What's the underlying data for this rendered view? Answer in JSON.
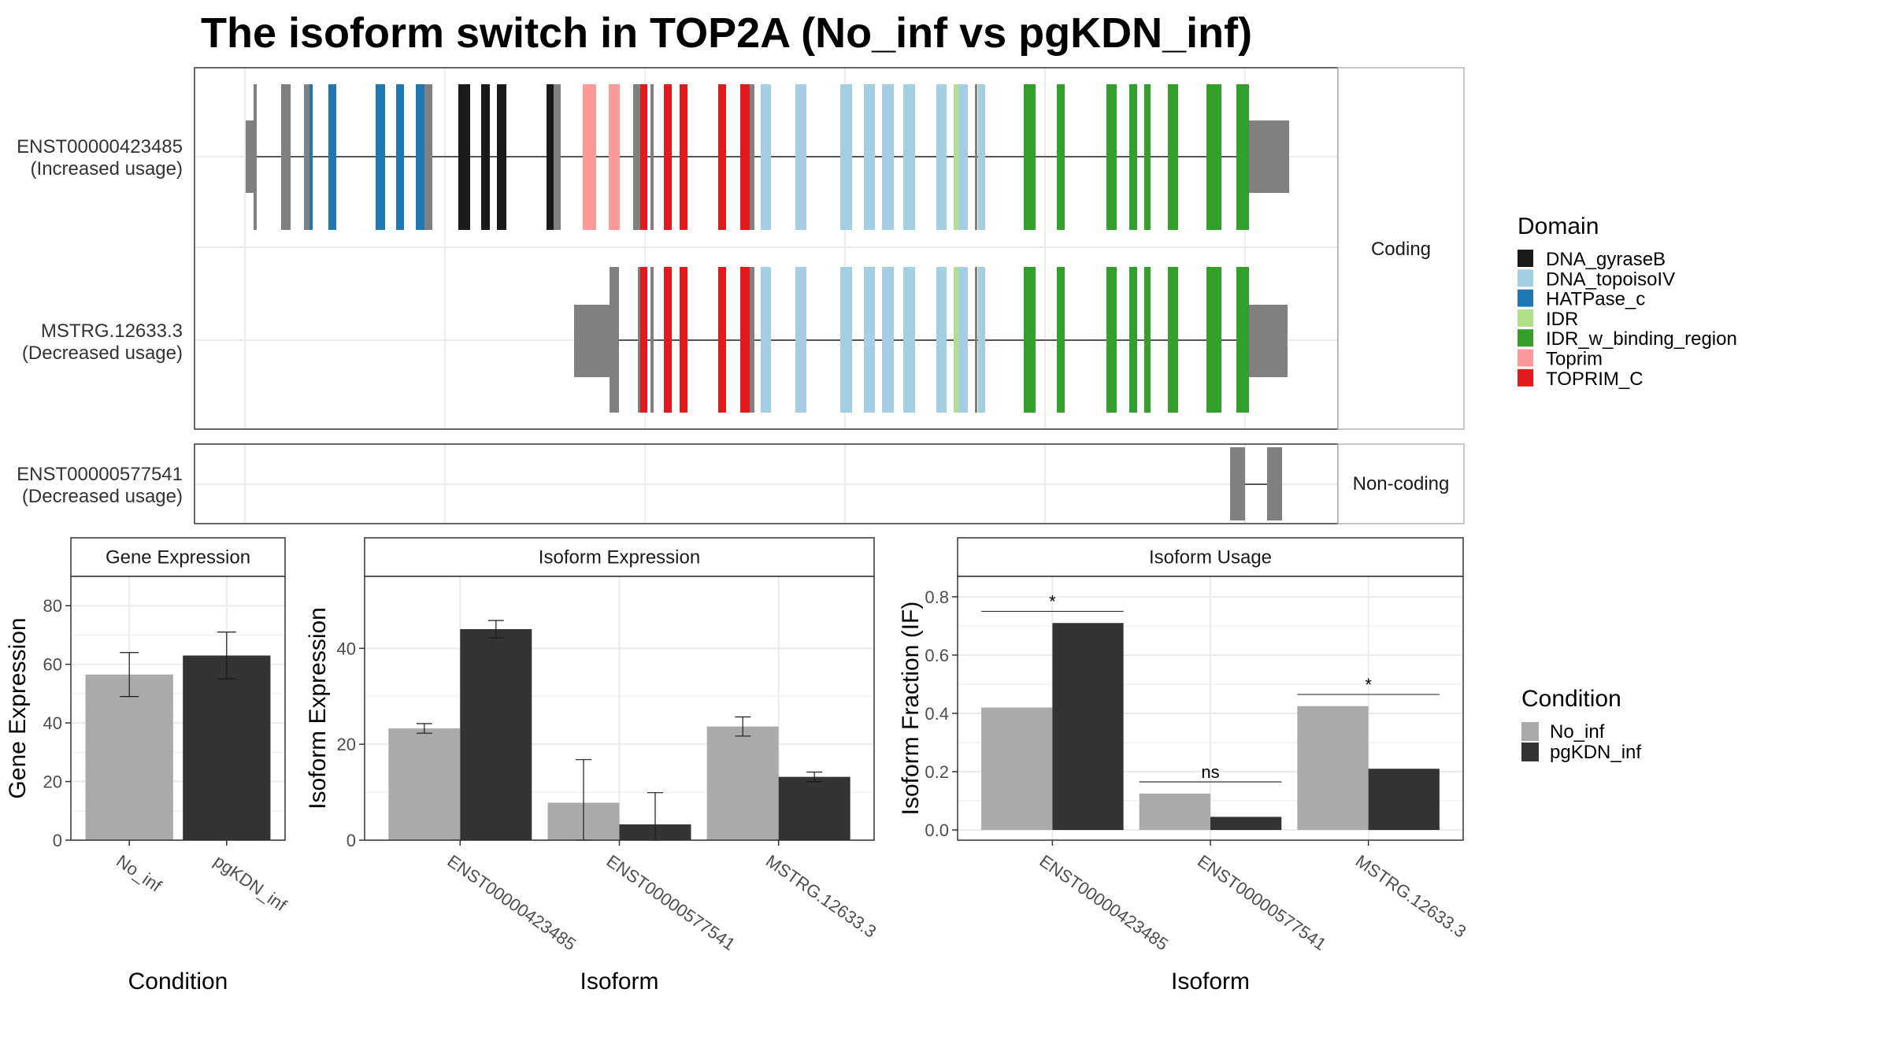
{
  "title": "The isoform switch in TOP2A (No_inf vs pgKDN_inf)",
  "structure": {
    "coding_label": "Coding",
    "noncoding_label": "Non-coding",
    "transcripts": [
      {
        "id": "ENST00000423485",
        "usage": "(Increased usage)"
      },
      {
        "id": "MSTRG.12633.3",
        "usage": "(Decreased usage)"
      },
      {
        "id": "ENST00000577541",
        "usage": "(Decreased usage)"
      }
    ]
  },
  "domain_legend": {
    "title": "Domain",
    "items": [
      {
        "name": "DNA_gyraseB",
        "color": "#1a1a1a"
      },
      {
        "name": "DNA_topoisoIV",
        "color": "#a6cee3"
      },
      {
        "name": "HATPase_c",
        "color": "#1f78b4"
      },
      {
        "name": "IDR",
        "color": "#b2df8a"
      },
      {
        "name": "IDR_w_binding_region",
        "color": "#33a02c"
      },
      {
        "name": "Toprim",
        "color": "#fb9a99"
      },
      {
        "name": "TOPRIM_C",
        "color": "#e31a1c"
      }
    ],
    "exon_color": "#808080"
  },
  "condition_legend": {
    "title": "Condition",
    "items": [
      {
        "name": "No_inf",
        "color": "#aaaaaa"
      },
      {
        "name": "pgKDN_inf",
        "color": "#333333"
      }
    ]
  },
  "chart_data": [
    {
      "type": "bar",
      "title": "Gene Expression",
      "xlabel": "Condition",
      "ylabel": "Gene Expression",
      "categories": [
        "No_inf",
        "pgKDN_inf"
      ],
      "values": [
        56.5,
        63
      ],
      "error": [
        [
          49,
          64
        ],
        [
          55,
          71
        ]
      ],
      "ylim": [
        0,
        90
      ],
      "yticks": [
        0,
        20,
        40,
        60,
        80
      ]
    },
    {
      "type": "bar",
      "title": "Isoform Expression",
      "xlabel": "Isoform",
      "ylabel": "Isoform Expression",
      "categories": [
        "ENST00000423485",
        "ENST00000577541",
        "MSTRG.12633.3"
      ],
      "series": [
        {
          "name": "No_inf",
          "values": [
            23.3,
            7.8,
            23.7
          ],
          "error": [
            [
              22.3,
              24.3
            ],
            [
              0,
              16.8
            ],
            [
              21.7,
              25.7
            ]
          ]
        },
        {
          "name": "pgKDN_inf",
          "values": [
            44,
            3.3,
            13.2
          ],
          "error": [
            [
              42.2,
              45.8
            ],
            [
              0,
              9.9
            ],
            [
              12.2,
              14.2
            ]
          ]
        }
      ],
      "ylim": [
        0,
        55
      ],
      "yticks": [
        0,
        20,
        40
      ]
    },
    {
      "type": "bar",
      "title": "Isoform Usage",
      "xlabel": "Isoform",
      "ylabel": "Isoform Fraction (IF)",
      "categories": [
        "ENST00000423485",
        "ENST00000577541",
        "MSTRG.12633.3"
      ],
      "series": [
        {
          "name": "No_inf",
          "values": [
            0.42,
            0.125,
            0.425
          ]
        },
        {
          "name": "pgKDN_inf",
          "values": [
            0.71,
            0.045,
            0.21
          ]
        }
      ],
      "significance": [
        "*",
        "ns",
        "*"
      ],
      "ylim": [
        -0.035,
        0.87
      ],
      "yticks": [
        0.0,
        0.2,
        0.4,
        0.6,
        0.8
      ]
    }
  ]
}
